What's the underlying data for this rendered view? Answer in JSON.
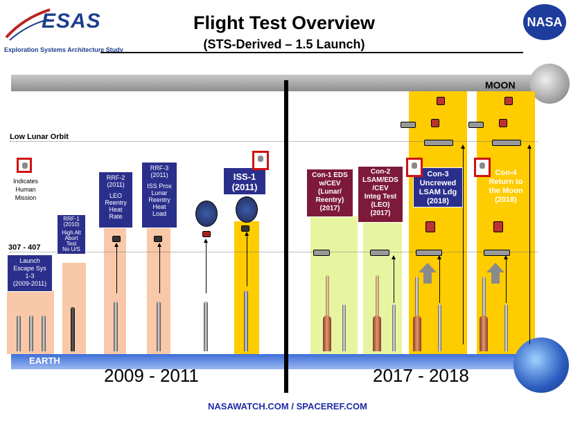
{
  "header": {
    "title": "Flight Test Overview",
    "subtitle": "(STS-Derived – 1.5 Launch)",
    "logo_text": "ESAS",
    "logo_subtitle": "Exploration Systems Architecture Study",
    "agency_logo_text": "NASA"
  },
  "levels": {
    "moon": "MOON",
    "low_lunar_orbit": "Low Lunar Orbit",
    "leo": "307 - 407",
    "earth": "EARTH"
  },
  "legend": {
    "human_mission": "Indicates Human Mission"
  },
  "periods": {
    "left": "2009 - 2011",
    "right": "2017 - 2018"
  },
  "missions": [
    {
      "id": "launch-escape",
      "label": "Launch Escape Sys 1-3 (2009-2011)"
    },
    {
      "id": "rrf1",
      "label": "RRF-1 (2010) High Alt Abort Test No U/S"
    },
    {
      "id": "rrf2",
      "label": "RRF-2 (2011) LEO Reentry Heat Rate"
    },
    {
      "id": "rrf3",
      "label": "RRF-3 (2011) ISS Prox Lunar Reentry Heat Load"
    },
    {
      "id": "iss1",
      "label": "ISS-1 (2011)"
    },
    {
      "id": "con1",
      "label": "Con-1 EDS w/CEV (Lunar/ Reentry) (2017)"
    },
    {
      "id": "con2",
      "label": "Con-2 LSAM/EDS /CEV Integ Test (LEO) (2017)"
    },
    {
      "id": "con3",
      "label": "Con-3 Uncrewed LSAM Ldg (2018)"
    },
    {
      "id": "con4",
      "label": "Con-4 Return to the Moon (2018)"
    }
  ],
  "box_text": {
    "les": [
      "Launch",
      "Escape Sys",
      "1-3",
      "(2009-2011)"
    ],
    "rrf1": [
      "RRF-1",
      "(2010)",
      "",
      "High Alt",
      "Abort",
      "Test",
      "No U/S"
    ],
    "rrf2": [
      "RRF-2",
      "(2011)",
      "",
      "LEO",
      "Reentry",
      "Heat",
      "Rate"
    ],
    "rrf3": [
      "RRF-3",
      "(2011)",
      "",
      "ISS Prox",
      "Lunar",
      "Reentry",
      "Heat",
      "Load"
    ],
    "iss1": [
      "ISS-1",
      "(2011)"
    ],
    "con1": [
      "Con-1 EDS",
      "w/CEV",
      "(Lunar/",
      "Reentry)",
      "(2017)"
    ],
    "con2": [
      "Con-2",
      "LSAM/EDS",
      "/CEV",
      "Integ Test",
      "(LEO)",
      "(2017)"
    ],
    "con3": [
      "Con-3",
      "Uncrewed",
      "LSAM Ldg",
      "(2018)"
    ],
    "con4": [
      "Con-4",
      "Return to",
      "the Moon",
      "(2018)"
    ],
    "legend": [
      "Indicates",
      "Human",
      "Mission"
    ]
  },
  "footer": "NASAWATCH.COM / SPACEREF.COM",
  "colors": {
    "test_column": "#f9c8a8",
    "crewed_column": "#ffcc00",
    "con_column": "#e8f5a0",
    "navy_box": "#2b2f8c",
    "maroon_box": "#7d1a3a",
    "human_marker": "#d01010"
  }
}
